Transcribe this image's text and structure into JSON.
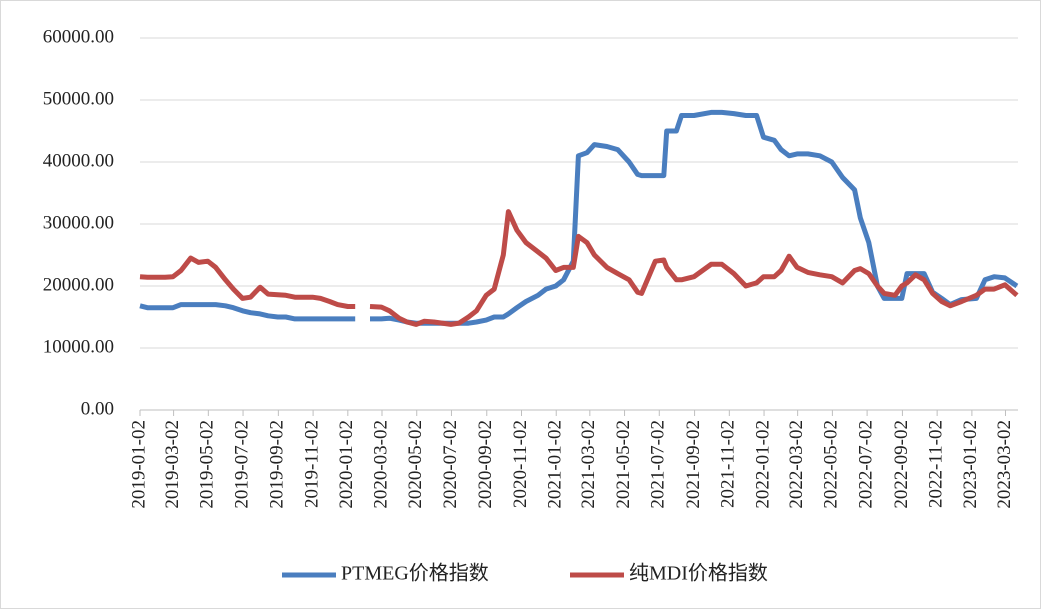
{
  "chart_data": {
    "type": "line",
    "x": [
      "2019-01-02",
      "2019-01-15",
      "2019-02-15",
      "2019-03-01",
      "2019-03-15",
      "2019-04-01",
      "2019-04-15",
      "2019-05-01",
      "2019-05-15",
      "2019-06-01",
      "2019-06-15",
      "2019-07-01",
      "2019-07-15",
      "2019-08-01",
      "2019-08-15",
      "2019-09-01",
      "2019-09-15",
      "2019-10-01",
      "2019-11-01",
      "2019-11-15",
      "2019-12-01",
      "2019-12-15",
      "2020-01-02",
      "2020-01-15",
      "2020-01-25",
      "2020-02-10",
      "2020-03-01",
      "2020-03-15",
      "2020-04-01",
      "2020-04-15",
      "2020-05-01",
      "2020-05-15",
      "2020-06-01",
      "2020-07-01",
      "2020-07-15",
      "2020-08-01",
      "2020-08-15",
      "2020-09-01",
      "2020-09-15",
      "2020-10-01",
      "2020-10-10",
      "2020-10-25",
      "2020-11-10",
      "2020-12-01",
      "2020-12-15",
      "2021-01-01",
      "2021-01-15",
      "2021-02-01",
      "2021-02-10",
      "2021-02-25",
      "2021-03-10",
      "2021-04-01",
      "2021-04-20",
      "2021-05-10",
      "2021-05-25",
      "2021-06-01",
      "2021-06-25",
      "2021-07-10",
      "2021-07-15",
      "2021-08-01",
      "2021-08-10",
      "2021-09-01",
      "2021-10-01",
      "2021-10-20",
      "2021-11-10",
      "2021-12-01",
      "2021-12-20",
      "2022-01-01",
      "2022-01-20",
      "2022-02-01",
      "2022-02-15",
      "2022-03-01",
      "2022-03-20",
      "2022-04-10",
      "2022-05-01",
      "2022-05-20",
      "2022-06-10",
      "2022-06-20",
      "2022-07-05",
      "2022-07-20",
      "2022-08-01",
      "2022-08-20",
      "2022-09-01",
      "2022-09-10",
      "2022-09-25",
      "2022-10-10",
      "2022-10-25",
      "2022-11-10",
      "2022-11-25",
      "2022-12-15",
      "2023-01-10",
      "2023-01-25",
      "2023-02-10",
      "2023-03-01",
      "2023-03-22"
    ],
    "series": [
      {
        "name": "PTMEG价格指数",
        "color": "#4a7ebf",
        "values": [
          16800,
          16500,
          16500,
          16500,
          17000,
          17000,
          17000,
          17000,
          17000,
          16800,
          16500,
          16000,
          15700,
          15500,
          15200,
          15000,
          15000,
          14700,
          14700,
          14700,
          14700,
          14700,
          14700,
          14700,
          null,
          14700,
          14700,
          14800,
          14500,
          14200,
          14000,
          14000,
          14000,
          14000,
          14000,
          14000,
          14200,
          14500,
          15000,
          15000,
          15500,
          16500,
          17500,
          18500,
          19500,
          20000,
          21000,
          24000,
          41000,
          41500,
          42800,
          42500,
          42000,
          40000,
          38000,
          37800,
          37800,
          37800,
          45000,
          45000,
          47500,
          47500,
          48000,
          48000,
          47800,
          47500,
          47500,
          44000,
          43500,
          42000,
          41000,
          41300,
          41300,
          41000,
          40000,
          37500,
          35500,
          31000,
          27000,
          20000,
          18000,
          18000,
          18000,
          22000,
          22000,
          22000,
          19000,
          18000,
          17000,
          17800,
          18000,
          21000,
          21500,
          21300,
          20000
        ]
      },
      {
        "name": "纯MDI价格指数",
        "color": "#be4b48",
        "values": [
          21500,
          21400,
          21400,
          21500,
          22500,
          24500,
          23800,
          24000,
          23000,
          21000,
          19500,
          18000,
          18200,
          19800,
          18700,
          18600,
          18500,
          18200,
          18200,
          18000,
          17500,
          17000,
          16700,
          16700,
          null,
          16700,
          16600,
          16000,
          14800,
          14200,
          13800,
          14300,
          14200,
          13800,
          14000,
          15000,
          16000,
          18500,
          19500,
          25000,
          32000,
          29000,
          27000,
          25500,
          24500,
          22500,
          23000,
          23000,
          28000,
          27000,
          25000,
          23000,
          22000,
          21000,
          19000,
          18800,
          24000,
          24200,
          23000,
          21000,
          21000,
          21500,
          23500,
          23500,
          22000,
          20000,
          20500,
          21500,
          21500,
          22500,
          24800,
          23000,
          22200,
          21800,
          21500,
          20500,
          22500,
          22800,
          22000,
          20000,
          18800,
          18500,
          20000,
          20500,
          21800,
          21000,
          18800,
          17500,
          16800,
          17500,
          18500,
          19500,
          19500,
          20200,
          18500
        ]
      }
    ],
    "xlim": [
      "2019-01-02",
      "2023-03-24"
    ],
    "xticks": [
      "2019-01-02",
      "2019-03-02",
      "2019-05-02",
      "2019-07-02",
      "2019-09-02",
      "2019-11-02",
      "2020-01-02",
      "2020-03-02",
      "2020-05-02",
      "2020-07-02",
      "2020-09-02",
      "2020-11-02",
      "2021-01-02",
      "2021-03-02",
      "2021-05-02",
      "2021-07-02",
      "2021-09-02",
      "2021-11-02",
      "2022-01-02",
      "2022-03-02",
      "2022-05-02",
      "2022-07-02",
      "2022-09-02",
      "2022-11-02",
      "2023-01-02",
      "2023-03-02"
    ],
    "ylim": [
      0,
      60000
    ],
    "yticks": [
      {
        "value": 0,
        "label": "0.00"
      },
      {
        "value": 10000,
        "label": "10000.00"
      },
      {
        "value": 20000,
        "label": "20000.00"
      },
      {
        "value": 30000,
        "label": "30000.00"
      },
      {
        "value": 40000,
        "label": "40000.00"
      },
      {
        "value": 50000,
        "label": "50000.00"
      },
      {
        "value": 60000,
        "label": "60000.00"
      }
    ],
    "grid": true,
    "legend": "bottom"
  }
}
